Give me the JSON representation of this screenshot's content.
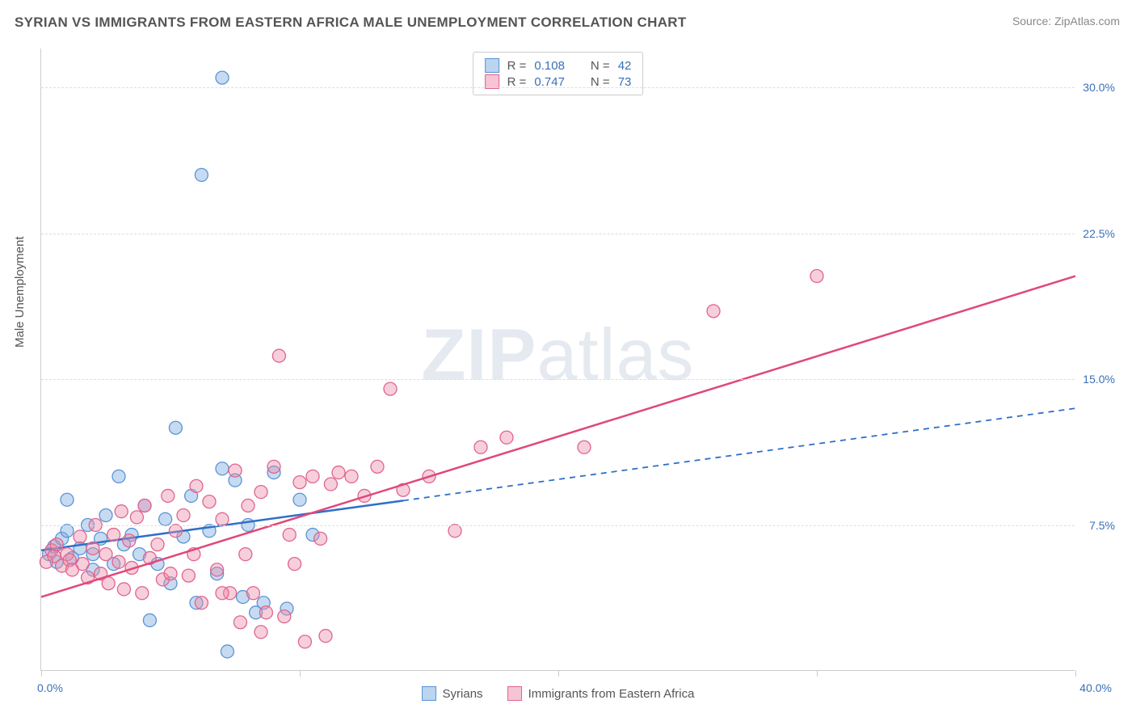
{
  "title": "SYRIAN VS IMMIGRANTS FROM EASTERN AFRICA MALE UNEMPLOYMENT CORRELATION CHART",
  "source": "Source: ZipAtlas.com",
  "ylabel": "Male Unemployment",
  "watermark_a": "ZIP",
  "watermark_b": "atlas",
  "chart": {
    "type": "scatter",
    "xlim": [
      0,
      40
    ],
    "ylim": [
      0,
      32
    ],
    "xticks": [
      0,
      10,
      20,
      30,
      40
    ],
    "yticks": [
      7.5,
      15.0,
      22.5,
      30.0
    ],
    "ytick_labels": [
      "7.5%",
      "15.0%",
      "22.5%",
      "30.0%"
    ],
    "xlim_labels": [
      "0.0%",
      "40.0%"
    ],
    "grid_color": "#dddddd",
    "axis_color": "#cccccc",
    "background_color": "#ffffff"
  },
  "series": [
    {
      "name": "Syrians",
      "color_fill": "rgba(120,170,225,0.42)",
      "color_stroke": "#5a94d6",
      "line_color": "#2f6fc9",
      "line_dash_after_x": 14,
      "trend": {
        "x1": 0,
        "y1": 6.2,
        "x2": 40,
        "y2": 13.5
      },
      "r": 0.108,
      "n": 42,
      "marker_radius": 8,
      "points": [
        [
          0.3,
          6.0
        ],
        [
          0.5,
          6.4
        ],
        [
          0.6,
          5.6
        ],
        [
          0.8,
          6.8
        ],
        [
          1.0,
          7.2
        ],
        [
          1.0,
          8.8
        ],
        [
          1.2,
          5.8
        ],
        [
          1.5,
          6.3
        ],
        [
          1.8,
          7.5
        ],
        [
          2.0,
          5.2
        ],
        [
          2.0,
          6.0
        ],
        [
          2.3,
          6.8
        ],
        [
          2.5,
          8.0
        ],
        [
          2.8,
          5.5
        ],
        [
          3.0,
          10.0
        ],
        [
          3.2,
          6.5
        ],
        [
          3.5,
          7.0
        ],
        [
          3.8,
          6.0
        ],
        [
          4.0,
          8.5
        ],
        [
          4.2,
          2.6
        ],
        [
          4.5,
          5.5
        ],
        [
          4.8,
          7.8
        ],
        [
          5.0,
          4.5
        ],
        [
          5.2,
          12.5
        ],
        [
          5.5,
          6.9
        ],
        [
          5.8,
          9.0
        ],
        [
          6.0,
          3.5
        ],
        [
          6.2,
          25.5
        ],
        [
          6.5,
          7.2
        ],
        [
          6.8,
          5.0
        ],
        [
          7.0,
          10.4
        ],
        [
          7.0,
          30.5
        ],
        [
          7.2,
          1.0
        ],
        [
          7.5,
          9.8
        ],
        [
          7.8,
          3.8
        ],
        [
          8.0,
          7.5
        ],
        [
          8.3,
          3.0
        ],
        [
          8.6,
          3.5
        ],
        [
          9.0,
          10.2
        ],
        [
          9.5,
          3.2
        ],
        [
          10.0,
          8.8
        ],
        [
          10.5,
          7.0
        ]
      ]
    },
    {
      "name": "Immigrants from Eastern Africa",
      "color_fill": "rgba(235,140,170,0.42)",
      "color_stroke": "#e0648e",
      "line_color": "#e0487a",
      "line_dash_after_x": 40,
      "trend": {
        "x1": 0,
        "y1": 3.8,
        "x2": 40,
        "y2": 20.3
      },
      "r": 0.747,
      "n": 73,
      "marker_radius": 8,
      "points": [
        [
          0.2,
          5.6
        ],
        [
          0.4,
          6.2
        ],
        [
          0.5,
          5.9
        ],
        [
          0.6,
          6.5
        ],
        [
          0.8,
          5.4
        ],
        [
          1.0,
          6.0
        ],
        [
          1.1,
          5.7
        ],
        [
          1.2,
          5.2
        ],
        [
          1.5,
          6.9
        ],
        [
          1.6,
          5.5
        ],
        [
          1.8,
          4.8
        ],
        [
          2.0,
          6.3
        ],
        [
          2.1,
          7.5
        ],
        [
          2.3,
          5.0
        ],
        [
          2.5,
          6.0
        ],
        [
          2.6,
          4.5
        ],
        [
          2.8,
          7.0
        ],
        [
          3.0,
          5.6
        ],
        [
          3.1,
          8.2
        ],
        [
          3.2,
          4.2
        ],
        [
          3.4,
          6.7
        ],
        [
          3.5,
          5.3
        ],
        [
          3.7,
          7.9
        ],
        [
          3.9,
          4.0
        ],
        [
          4.0,
          8.5
        ],
        [
          4.2,
          5.8
        ],
        [
          4.5,
          6.5
        ],
        [
          4.7,
          4.7
        ],
        [
          4.9,
          9.0
        ],
        [
          5.0,
          5.0
        ],
        [
          5.2,
          7.2
        ],
        [
          5.5,
          8.0
        ],
        [
          5.7,
          4.9
        ],
        [
          5.9,
          6.0
        ],
        [
          6.0,
          9.5
        ],
        [
          6.2,
          3.5
        ],
        [
          6.5,
          8.7
        ],
        [
          6.8,
          5.2
        ],
        [
          7.0,
          7.8
        ],
        [
          7.3,
          4.0
        ],
        [
          7.5,
          10.3
        ],
        [
          7.7,
          2.5
        ],
        [
          7.9,
          6.0
        ],
        [
          8.0,
          8.5
        ],
        [
          8.2,
          4.0
        ],
        [
          8.5,
          9.2
        ],
        [
          8.7,
          3.0
        ],
        [
          9.0,
          10.5
        ],
        [
          9.2,
          16.2
        ],
        [
          9.4,
          2.8
        ],
        [
          9.6,
          7.0
        ],
        [
          9.8,
          5.5
        ],
        [
          10.0,
          9.7
        ],
        [
          10.2,
          1.5
        ],
        [
          10.5,
          10.0
        ],
        [
          10.8,
          6.8
        ],
        [
          11.0,
          1.8
        ],
        [
          11.2,
          9.6
        ],
        [
          11.5,
          10.2
        ],
        [
          12.0,
          10.0
        ],
        [
          12.5,
          9.0
        ],
        [
          13.0,
          10.5
        ],
        [
          13.5,
          14.5
        ],
        [
          14.0,
          9.3
        ],
        [
          15.0,
          10.0
        ],
        [
          16.0,
          7.2
        ],
        [
          17.0,
          11.5
        ],
        [
          18.0,
          12.0
        ],
        [
          21.0,
          11.5
        ],
        [
          26.0,
          18.5
        ],
        [
          30.0,
          20.3
        ],
        [
          7.0,
          4.0
        ],
        [
          8.5,
          2.0
        ]
      ]
    }
  ],
  "legend_top": [
    {
      "swatch_fill": "rgba(120,170,225,0.5)",
      "swatch_stroke": "#5a94d6",
      "r": "0.108",
      "n": "42"
    },
    {
      "swatch_fill": "rgba(235,140,170,0.5)",
      "swatch_stroke": "#e0648e",
      "r": "0.747",
      "n": "73"
    }
  ],
  "legend_bottom": [
    {
      "swatch_fill": "rgba(120,170,225,0.5)",
      "swatch_stroke": "#5a94d6",
      "label": "Syrians"
    },
    {
      "swatch_fill": "rgba(235,140,170,0.5)",
      "swatch_stroke": "#e0648e",
      "label": "Immigrants from Eastern Africa"
    }
  ]
}
